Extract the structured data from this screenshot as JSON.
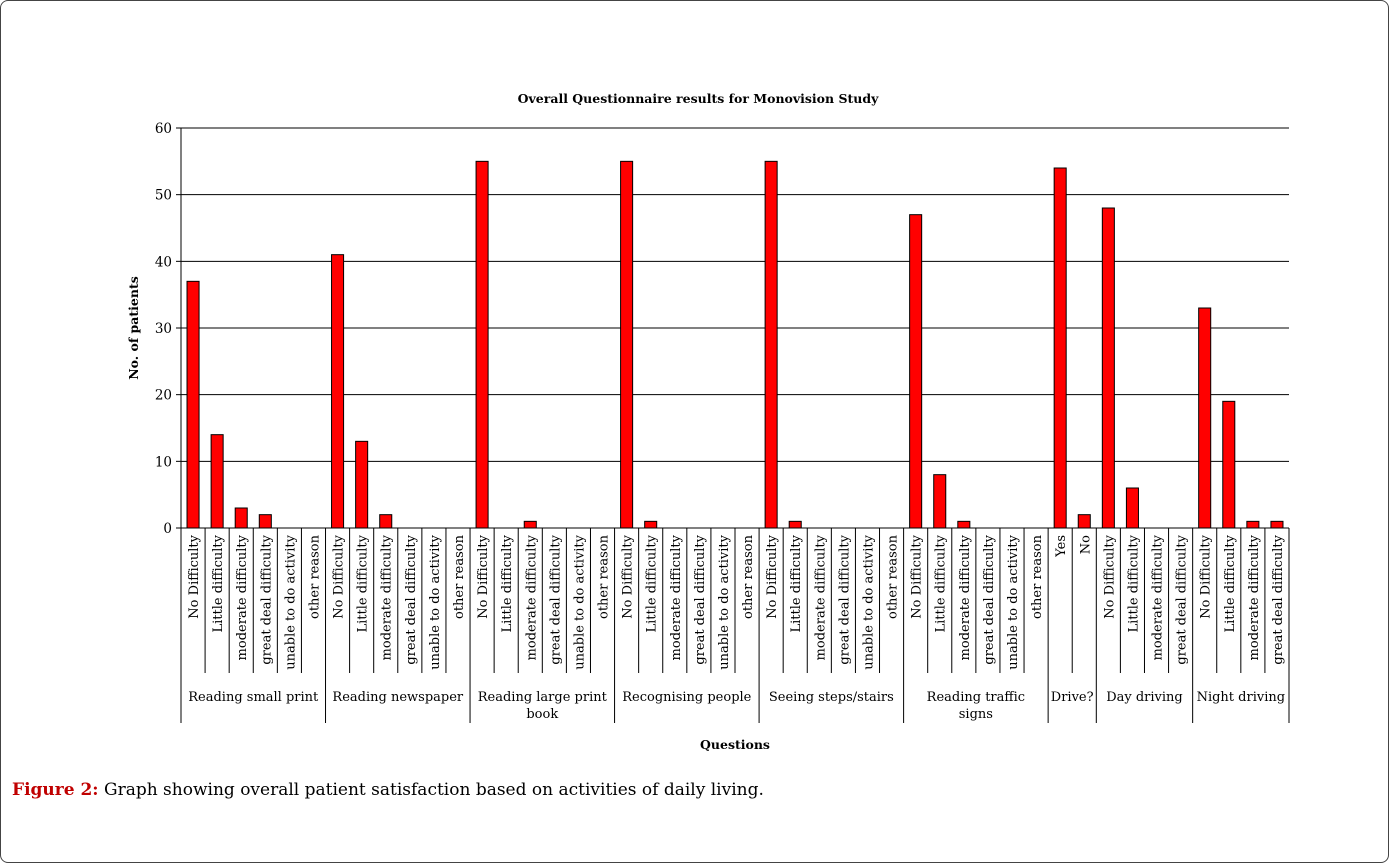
{
  "figure": {
    "label": "Figure 2:",
    "caption": "Graph showing overall patient satisfaction based on activities of daily living."
  },
  "chart_data": {
    "type": "bar",
    "title": "Overall Questionnaire results for Monovision Study",
    "xlabel": "Questions",
    "ylabel": "No. of patients",
    "ylim": [
      0,
      60
    ],
    "yticks": [
      0,
      10,
      20,
      30,
      40,
      50,
      60
    ],
    "grid": true,
    "bar_color": "#ff0000",
    "groups": [
      {
        "name": "Reading small print",
        "categories": [
          "No Difficulty",
          "Little difficulty",
          "moderate difficulty",
          "great deal difficulty",
          "unable to do activity",
          "other reason"
        ],
        "values": [
          37,
          14,
          3,
          2,
          0,
          0
        ]
      },
      {
        "name": "Reading newspaper",
        "categories": [
          "No Difficulty",
          "Little difficulty",
          "moderate difficulty",
          "great deal difficulty",
          "unable to do activity",
          "other reason"
        ],
        "values": [
          41,
          13,
          2,
          0,
          0,
          0
        ]
      },
      {
        "name": "Reading large print book",
        "categories": [
          "No Difficulty",
          "Little difficulty",
          "moderate difficulty",
          "great deal difficulty",
          "unable to do activity",
          "other reason"
        ],
        "values": [
          55,
          0,
          1,
          0,
          0,
          0
        ]
      },
      {
        "name": "Recognising people",
        "categories": [
          "No Difficulty",
          "Little difficulty",
          "moderate difficulty",
          "great deal difficulty",
          "unable to do activity",
          "other reason"
        ],
        "values": [
          55,
          1,
          0,
          0,
          0,
          0
        ]
      },
      {
        "name": "Seeing steps/stairs",
        "categories": [
          "No Difficulty",
          "Little difficulty",
          "moderate difficulty",
          "great deal difficulty",
          "unable to do activity",
          "other reason"
        ],
        "values": [
          55,
          1,
          0,
          0,
          0,
          0
        ]
      },
      {
        "name": "Reading traffic signs",
        "categories": [
          "No Difficulty",
          "Little difficulty",
          "moderate difficulty",
          "great deal difficulty",
          "unable to do activity",
          "other reason"
        ],
        "values": [
          47,
          8,
          1,
          0,
          0,
          0
        ]
      },
      {
        "name": "Drive?",
        "categories": [
          "Yes",
          "No"
        ],
        "values": [
          54,
          2
        ]
      },
      {
        "name": "Day driving",
        "categories": [
          "No Difficulty",
          "Little difficulty",
          "moderate difficulty",
          "great deal difficulty"
        ],
        "values": [
          48,
          6,
          0,
          0
        ]
      },
      {
        "name": "Night driving",
        "categories": [
          "No Difficulty",
          "Little difficulty",
          "moderate difficulty",
          "great deal difficulty"
        ],
        "values": [
          33,
          19,
          1,
          1
        ]
      }
    ]
  }
}
